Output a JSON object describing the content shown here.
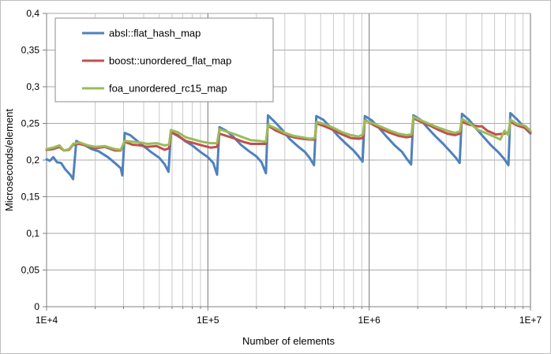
{
  "chart_data": {
    "type": "line",
    "title": "",
    "xlabel": "Number of elements",
    "ylabel": "Microseconds/element",
    "x_scale": "log",
    "xlim": [
      10000,
      10000000
    ],
    "ylim": [
      0,
      0.4
    ],
    "x_ticks": [
      {
        "value": 10000,
        "label": "1E+4"
      },
      {
        "value": 100000,
        "label": "1E+5"
      },
      {
        "value": 1000000,
        "label": "1E+6"
      },
      {
        "value": 10000000,
        "label": "1E+7"
      }
    ],
    "y_ticks": [
      {
        "value": 0,
        "label": "0"
      },
      {
        "value": 0.05,
        "label": "0,05"
      },
      {
        "value": 0.1,
        "label": "0,1"
      },
      {
        "value": 0.15,
        "label": "0,15"
      },
      {
        "value": 0.2,
        "label": "0,2"
      },
      {
        "value": 0.25,
        "label": "0,25"
      },
      {
        "value": 0.3,
        "label": "0,3"
      },
      {
        "value": 0.35,
        "label": "0,35"
      },
      {
        "value": 0.4,
        "label": "0,4"
      }
    ],
    "grid": true,
    "legend_position": "top-left",
    "series": [
      {
        "name": "absl::flat_hash_map",
        "color": "#4f81bd",
        "points": [
          [
            10000,
            0.201
          ],
          [
            10500,
            0.199
          ],
          [
            11000,
            0.204
          ],
          [
            11600,
            0.197
          ],
          [
            12300,
            0.196
          ],
          [
            13000,
            0.188
          ],
          [
            14000,
            0.18
          ],
          [
            14600,
            0.174
          ],
          [
            15300,
            0.226
          ],
          [
            17000,
            0.221
          ],
          [
            19000,
            0.215
          ],
          [
            21000,
            0.212
          ],
          [
            24000,
            0.204
          ],
          [
            26500,
            0.196
          ],
          [
            28800,
            0.189
          ],
          [
            29500,
            0.179
          ],
          [
            30500,
            0.237
          ],
          [
            33000,
            0.234
          ],
          [
            36500,
            0.226
          ],
          [
            40000,
            0.219
          ],
          [
            45000,
            0.21
          ],
          [
            50000,
            0.203
          ],
          [
            54000,
            0.194
          ],
          [
            57000,
            0.184
          ],
          [
            59000,
            0.238
          ],
          [
            65000,
            0.234
          ],
          [
            72000,
            0.226
          ],
          [
            80000,
            0.22
          ],
          [
            90000,
            0.211
          ],
          [
            100000,
            0.204
          ],
          [
            108000,
            0.196
          ],
          [
            114000,
            0.18
          ],
          [
            118000,
            0.245
          ],
          [
            130000,
            0.24
          ],
          [
            145000,
            0.231
          ],
          [
            160000,
            0.221
          ],
          [
            180000,
            0.212
          ],
          [
            200000,
            0.205
          ],
          [
            215000,
            0.197
          ],
          [
            229000,
            0.182
          ],
          [
            236000,
            0.261
          ],
          [
            260000,
            0.252
          ],
          [
            290000,
            0.241
          ],
          [
            320000,
            0.229
          ],
          [
            360000,
            0.219
          ],
          [
            400000,
            0.211
          ],
          [
            430000,
            0.202
          ],
          [
            455000,
            0.193
          ],
          [
            470000,
            0.26
          ],
          [
            520000,
            0.255
          ],
          [
            580000,
            0.244
          ],
          [
            640000,
            0.233
          ],
          [
            720000,
            0.222
          ],
          [
            800000,
            0.213
          ],
          [
            860000,
            0.205
          ],
          [
            910000,
            0.198
          ],
          [
            940000,
            0.26
          ],
          [
            1040000,
            0.254
          ],
          [
            1160000,
            0.243
          ],
          [
            1280000,
            0.232
          ],
          [
            1440000,
            0.22
          ],
          [
            1600000,
            0.211
          ],
          [
            1720000,
            0.201
          ],
          [
            1820000,
            0.194
          ],
          [
            1880000,
            0.261
          ],
          [
            2080000,
            0.255
          ],
          [
            2300000,
            0.244
          ],
          [
            2560000,
            0.233
          ],
          [
            2880000,
            0.222
          ],
          [
            3200000,
            0.211
          ],
          [
            3450000,
            0.203
          ],
          [
            3640000,
            0.196
          ],
          [
            3760000,
            0.263
          ],
          [
            4150000,
            0.255
          ],
          [
            4600000,
            0.243
          ],
          [
            5100000,
            0.232
          ],
          [
            5700000,
            0.22
          ],
          [
            6300000,
            0.211
          ],
          [
            6850000,
            0.202
          ],
          [
            7300000,
            0.193
          ],
          [
            7500000,
            0.264
          ],
          [
            8300000,
            0.255
          ],
          [
            9200000,
            0.244
          ],
          [
            10000000,
            0.236
          ]
        ]
      },
      {
        "name": "boost::unordered_flat_map",
        "color": "#c0504d",
        "points": [
          [
            10000,
            0.214
          ],
          [
            11000,
            0.215
          ],
          [
            12000,
            0.218
          ],
          [
            12800,
            0.213
          ],
          [
            13800,
            0.214
          ],
          [
            14600,
            0.221
          ],
          [
            16000,
            0.222
          ],
          [
            18000,
            0.219
          ],
          [
            20000,
            0.216
          ],
          [
            23000,
            0.218
          ],
          [
            26500,
            0.213
          ],
          [
            28800,
            0.213
          ],
          [
            30500,
            0.225
          ],
          [
            34000,
            0.221
          ],
          [
            38000,
            0.22
          ],
          [
            42000,
            0.218
          ],
          [
            48000,
            0.219
          ],
          [
            54000,
            0.214
          ],
          [
            57500,
            0.216
          ],
          [
            59000,
            0.238
          ],
          [
            65000,
            0.233
          ],
          [
            73000,
            0.226
          ],
          [
            82000,
            0.223
          ],
          [
            92000,
            0.22
          ],
          [
            104000,
            0.217
          ],
          [
            114000,
            0.218
          ],
          [
            118000,
            0.236
          ],
          [
            130000,
            0.233
          ],
          [
            148000,
            0.229
          ],
          [
            165000,
            0.225
          ],
          [
            185000,
            0.222
          ],
          [
            210000,
            0.222
          ],
          [
            229000,
            0.222
          ],
          [
            236000,
            0.247
          ],
          [
            265000,
            0.24
          ],
          [
            300000,
            0.235
          ],
          [
            340000,
            0.231
          ],
          [
            385000,
            0.229
          ],
          [
            430000,
            0.228
          ],
          [
            460000,
            0.228
          ],
          [
            472000,
            0.25
          ],
          [
            530000,
            0.246
          ],
          [
            600000,
            0.241
          ],
          [
            680000,
            0.235
          ],
          [
            770000,
            0.23
          ],
          [
            860000,
            0.229
          ],
          [
            915000,
            0.23
          ],
          [
            940000,
            0.255
          ],
          [
            1060000,
            0.248
          ],
          [
            1200000,
            0.242
          ],
          [
            1350000,
            0.237
          ],
          [
            1520000,
            0.233
          ],
          [
            1700000,
            0.231
          ],
          [
            1830000,
            0.232
          ],
          [
            1880000,
            0.257
          ],
          [
            2100000,
            0.252
          ],
          [
            2380000,
            0.247
          ],
          [
            2700000,
            0.241
          ],
          [
            3050000,
            0.236
          ],
          [
            3400000,
            0.234
          ],
          [
            3650000,
            0.236
          ],
          [
            3760000,
            0.252
          ],
          [
            4200000,
            0.248
          ],
          [
            4750000,
            0.246
          ],
          [
            5000000,
            0.246
          ],
          [
            5400000,
            0.24
          ],
          [
            6100000,
            0.235
          ],
          [
            6900000,
            0.236
          ],
          [
            7300000,
            0.238
          ],
          [
            7500000,
            0.252
          ],
          [
            8300000,
            0.247
          ],
          [
            9200000,
            0.244
          ],
          [
            10000000,
            0.238
          ]
        ]
      },
      {
        "name": "foa_unordered_rc15_map",
        "color": "#9bbb59",
        "points": [
          [
            10000,
            0.215
          ],
          [
            11000,
            0.217
          ],
          [
            12000,
            0.22
          ],
          [
            12800,
            0.213
          ],
          [
            13800,
            0.215
          ],
          [
            14600,
            0.222
          ],
          [
            16000,
            0.224
          ],
          [
            18000,
            0.22
          ],
          [
            20000,
            0.218
          ],
          [
            23000,
            0.219
          ],
          [
            26500,
            0.215
          ],
          [
            28800,
            0.214
          ],
          [
            30500,
            0.226
          ],
          [
            34000,
            0.225
          ],
          [
            38000,
            0.224
          ],
          [
            42000,
            0.222
          ],
          [
            48000,
            0.223
          ],
          [
            54000,
            0.22
          ],
          [
            57500,
            0.221
          ],
          [
            59000,
            0.241
          ],
          [
            65000,
            0.238
          ],
          [
            73000,
            0.231
          ],
          [
            82000,
            0.228
          ],
          [
            92000,
            0.225
          ],
          [
            104000,
            0.223
          ],
          [
            114000,
            0.223
          ],
          [
            118000,
            0.242
          ],
          [
            130000,
            0.239
          ],
          [
            148000,
            0.235
          ],
          [
            165000,
            0.231
          ],
          [
            185000,
            0.227
          ],
          [
            210000,
            0.226
          ],
          [
            229000,
            0.225
          ],
          [
            236000,
            0.248
          ],
          [
            265000,
            0.243
          ],
          [
            300000,
            0.237
          ],
          [
            340000,
            0.233
          ],
          [
            385000,
            0.231
          ],
          [
            430000,
            0.229
          ],
          [
            460000,
            0.23
          ],
          [
            472000,
            0.252
          ],
          [
            530000,
            0.249
          ],
          [
            600000,
            0.244
          ],
          [
            680000,
            0.238
          ],
          [
            770000,
            0.234
          ],
          [
            860000,
            0.232
          ],
          [
            915000,
            0.235
          ],
          [
            940000,
            0.254
          ],
          [
            1060000,
            0.25
          ],
          [
            1200000,
            0.245
          ],
          [
            1350000,
            0.24
          ],
          [
            1520000,
            0.236
          ],
          [
            1700000,
            0.234
          ],
          [
            1830000,
            0.235
          ],
          [
            1880000,
            0.259
          ],
          [
            2100000,
            0.254
          ],
          [
            2380000,
            0.249
          ],
          [
            2700000,
            0.244
          ],
          [
            3050000,
            0.24
          ],
          [
            3400000,
            0.237
          ],
          [
            3650000,
            0.239
          ],
          [
            3760000,
            0.256
          ],
          [
            4200000,
            0.25
          ],
          [
            4750000,
            0.241
          ],
          [
            5400000,
            0.236
          ],
          [
            6100000,
            0.231
          ],
          [
            6500000,
            0.228
          ],
          [
            6900000,
            0.24
          ],
          [
            7300000,
            0.234
          ],
          [
            7500000,
            0.255
          ],
          [
            8300000,
            0.249
          ],
          [
            9200000,
            0.247
          ],
          [
            10000000,
            0.24
          ]
        ]
      }
    ]
  }
}
